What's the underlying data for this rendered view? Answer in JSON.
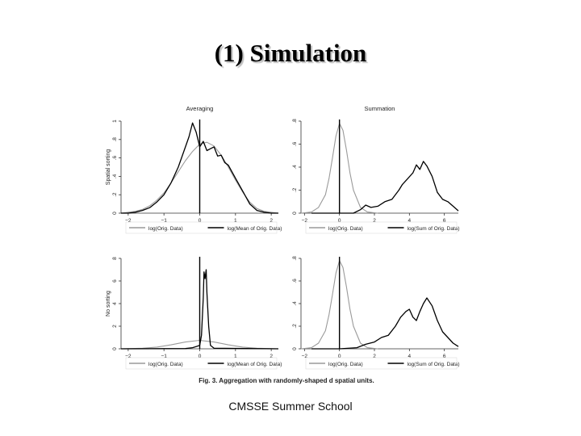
{
  "slide": {
    "title": "(1) Simulation",
    "footer": "CMSSE Summer School",
    "caption": "Fig. 3. Aggregation with randomly-shaped d spatial units."
  },
  "colors": {
    "original": "#9a9a9a",
    "aggregated": "#000000"
  },
  "chart_data": [
    {
      "type": "line",
      "title": "Averaging",
      "ylabel": "Spatial sorting",
      "xlim": [
        -2.2,
        2.2
      ],
      "ylim": [
        0,
        1
      ],
      "xticks": [
        -2,
        -1,
        0,
        1,
        2
      ],
      "yticks": [
        0,
        0.2,
        0.4,
        0.6,
        0.8,
        1
      ],
      "xtick_labels": [
        "−2",
        "−1",
        "0",
        "1",
        "2"
      ],
      "ytick_labels": [
        "0",
        ".2",
        ".4",
        ".6",
        ".8",
        "1"
      ],
      "vline": 0,
      "legend": [
        "log(Orig. Data)",
        "log(Mean of Orig. Data)"
      ],
      "series": [
        {
          "name": "log(Orig. Data)",
          "role": "original",
          "x": [
            -2.2,
            -2.0,
            -1.8,
            -1.6,
            -1.4,
            -1.2,
            -1.0,
            -0.8,
            -0.6,
            -0.4,
            -0.2,
            0.0,
            0.2,
            0.4,
            0.6,
            0.8,
            1.0,
            1.2,
            1.4,
            1.6,
            1.8,
            2.0,
            2.2
          ],
          "y": [
            0.0,
            0.01,
            0.02,
            0.04,
            0.08,
            0.14,
            0.22,
            0.33,
            0.45,
            0.57,
            0.67,
            0.75,
            0.77,
            0.73,
            0.63,
            0.5,
            0.36,
            0.23,
            0.12,
            0.05,
            0.02,
            0.01,
            0.0
          ]
        },
        {
          "name": "log(Mean of Orig. Data)",
          "role": "aggregated",
          "x": [
            -2.2,
            -2.0,
            -1.8,
            -1.6,
            -1.4,
            -1.2,
            -1.0,
            -0.8,
            -0.6,
            -0.4,
            -0.3,
            -0.2,
            -0.1,
            0.0,
            0.1,
            0.2,
            0.3,
            0.4,
            0.5,
            0.6,
            0.7,
            0.8,
            1.0,
            1.2,
            1.4,
            1.6,
            1.8,
            2.0,
            2.2
          ],
          "y": [
            0.0,
            0.0,
            0.01,
            0.03,
            0.06,
            0.12,
            0.2,
            0.33,
            0.5,
            0.72,
            0.83,
            0.98,
            0.88,
            0.72,
            0.78,
            0.68,
            0.7,
            0.72,
            0.62,
            0.63,
            0.55,
            0.52,
            0.38,
            0.24,
            0.1,
            0.03,
            0.01,
            0.0,
            0.0
          ]
        }
      ]
    },
    {
      "type": "line",
      "title": "Summation",
      "ylabel": "",
      "xlim": [
        -2.2,
        6.8
      ],
      "ylim": [
        0,
        0.8
      ],
      "xticks": [
        -2,
        0,
        2,
        4,
        6
      ],
      "yticks": [
        0,
        0.2,
        0.4,
        0.6,
        0.8
      ],
      "xtick_labels": [
        "−2",
        "0",
        "2",
        "4",
        "6"
      ],
      "ytick_labels": [
        "0",
        ".2",
        ".4",
        ".6",
        ".8"
      ],
      "vline": 0,
      "legend": [
        "log(Orig. Data)",
        "log(Sum of Orig. Data)"
      ],
      "series": [
        {
          "name": "log(Orig. Data)",
          "role": "original",
          "x": [
            -2.2,
            -1.6,
            -1.2,
            -0.8,
            -0.6,
            -0.4,
            -0.2,
            0.0,
            0.2,
            0.4,
            0.6,
            0.8,
            1.2,
            1.6,
            2.2
          ],
          "y": [
            0.0,
            0.01,
            0.05,
            0.16,
            0.3,
            0.48,
            0.67,
            0.78,
            0.72,
            0.55,
            0.35,
            0.2,
            0.05,
            0.01,
            0.0
          ]
        },
        {
          "name": "log(Sum of Orig. Data)",
          "role": "aggregated",
          "x": [
            -1.6,
            -1.0,
            0.0,
            0.8,
            1.2,
            1.5,
            1.8,
            2.2,
            2.6,
            3.0,
            3.4,
            3.6,
            3.9,
            4.2,
            4.4,
            4.6,
            4.8,
            5.0,
            5.3,
            5.6,
            5.9,
            6.2,
            6.5,
            6.8
          ],
          "y": [
            0.0,
            0.0,
            0.0,
            0.0,
            0.03,
            0.07,
            0.05,
            0.06,
            0.1,
            0.12,
            0.2,
            0.25,
            0.3,
            0.35,
            0.42,
            0.38,
            0.45,
            0.41,
            0.32,
            0.18,
            0.12,
            0.1,
            0.06,
            0.02
          ]
        }
      ]
    },
    {
      "type": "line",
      "title": "",
      "ylabel": "No sorting",
      "xlim": [
        -2.2,
        2.2
      ],
      "ylim": [
        0,
        8
      ],
      "xticks": [
        -2,
        -1,
        0,
        1,
        2
      ],
      "yticks": [
        0,
        2,
        4,
        6,
        8
      ],
      "xtick_labels": [
        "−2",
        "−1",
        "0",
        "1",
        "2"
      ],
      "ytick_labels": [
        "0",
        "2",
        "4",
        "6",
        "8"
      ],
      "vline": 0,
      "legend": [
        "log(Orig. Data)",
        "log(Mean of Orig. Data)"
      ],
      "series": [
        {
          "name": "log(Orig. Data)",
          "role": "original",
          "x": [
            -2.2,
            -1.6,
            -1.2,
            -0.8,
            -0.4,
            0.0,
            0.4,
            0.8,
            1.2,
            1.6,
            2.2
          ],
          "y": [
            0.0,
            0.05,
            0.15,
            0.35,
            0.6,
            0.75,
            0.6,
            0.35,
            0.15,
            0.05,
            0.0
          ]
        },
        {
          "name": "log(Mean of Orig. Data)",
          "role": "aggregated",
          "x": [
            -2.2,
            -0.4,
            -0.2,
            -0.1,
            0.0,
            0.05,
            0.1,
            0.12,
            0.15,
            0.18,
            0.2,
            0.25,
            0.3,
            0.4,
            2.2
          ],
          "y": [
            0.0,
            0.02,
            0.1,
            0.2,
            0.3,
            1.2,
            4.5,
            6.8,
            6.2,
            7.0,
            5.0,
            2.0,
            0.3,
            0.05,
            0.0
          ]
        }
      ]
    },
    {
      "type": "line",
      "title": "",
      "ylabel": "",
      "xlim": [
        -2.2,
        6.8
      ],
      "ylim": [
        0,
        0.8
      ],
      "xticks": [
        -2,
        0,
        2,
        4,
        6
      ],
      "yticks": [
        0,
        0.2,
        0.4,
        0.6,
        0.8
      ],
      "xtick_labels": [
        "−2",
        "0",
        "2",
        "4",
        "6"
      ],
      "ytick_labels": [
        "0",
        ".2",
        ".4",
        ".6",
        ".8"
      ],
      "vline": 0,
      "legend": [
        "log(Orig. Data)",
        "log(Sum of Orig. Data)"
      ],
      "series": [
        {
          "name": "log(Orig. Data)",
          "role": "original",
          "x": [
            -2.2,
            -1.6,
            -1.2,
            -0.8,
            -0.6,
            -0.4,
            -0.2,
            0.0,
            0.2,
            0.4,
            0.6,
            0.8,
            1.2,
            1.6,
            2.2
          ],
          "y": [
            0.0,
            0.01,
            0.05,
            0.16,
            0.3,
            0.48,
            0.67,
            0.78,
            0.72,
            0.55,
            0.35,
            0.2,
            0.05,
            0.01,
            0.0
          ]
        },
        {
          "name": "log(Sum of Orig. Data)",
          "role": "aggregated",
          "x": [
            -1.6,
            -1.0,
            0.0,
            1.0,
            1.5,
            2.0,
            2.4,
            2.8,
            3.2,
            3.5,
            3.8,
            4.0,
            4.2,
            4.4,
            4.6,
            4.8,
            5.0,
            5.3,
            5.6,
            5.9,
            6.2,
            6.5,
            6.8
          ],
          "y": [
            0.0,
            0.0,
            0.0,
            0.01,
            0.04,
            0.06,
            0.1,
            0.12,
            0.2,
            0.28,
            0.33,
            0.35,
            0.28,
            0.25,
            0.33,
            0.4,
            0.45,
            0.38,
            0.25,
            0.15,
            0.1,
            0.05,
            0.02
          ]
        }
      ]
    }
  ]
}
